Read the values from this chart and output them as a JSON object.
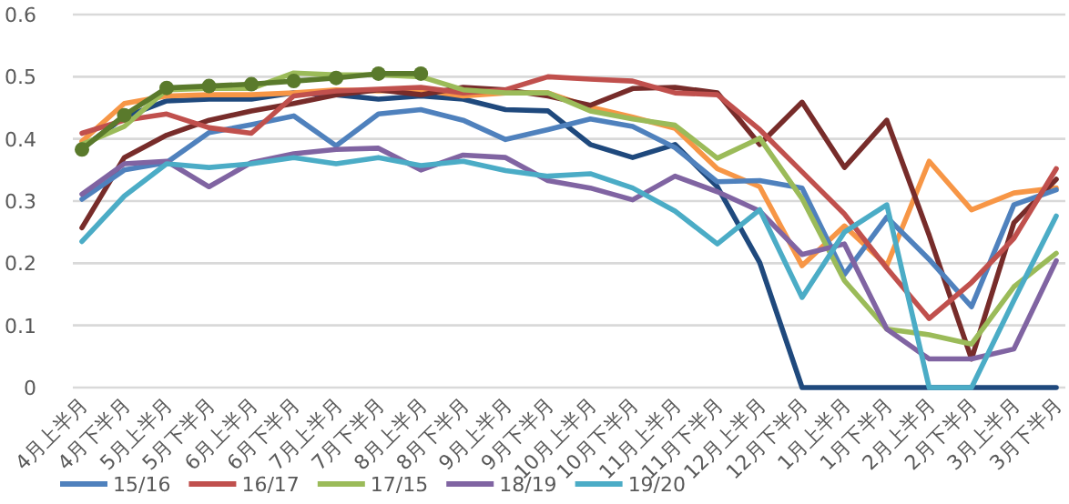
{
  "chart_data": {
    "type": "line",
    "categories": [
      "4月上半月",
      "4月下半月",
      "5月上半月",
      "5月下半月",
      "6月上半月",
      "6月下半月",
      "7月上半月",
      "7月下半月",
      "8月上半月",
      "8月下半月",
      "9月上半月",
      "9月下半月",
      "10月上半月",
      "10月下半月",
      "11月上半月",
      "11月下半月",
      "12月上半月",
      "12月下半月",
      "1月上半月",
      "1月下半月",
      "2月上半月",
      "2月下半月",
      "3月上半月",
      "3月下半月"
    ],
    "ylim": [
      0,
      0.6
    ],
    "yticks": [
      0,
      0.1,
      0.2,
      0.3,
      0.4,
      0.5,
      0.6
    ],
    "grid": "y",
    "legend": "bottom",
    "series": [
      {
        "color": "#1f497d",
        "values": [
          0.385,
          0.435,
          0.461,
          0.464,
          0.464,
          0.474,
          0.471,
          0.464,
          0.469,
          0.464,
          0.447,
          0.445,
          0.391,
          0.37,
          0.391,
          0.323,
          0.201,
          0,
          0,
          0,
          0,
          0,
          0,
          0
        ]
      },
      {
        "color": "#f79646",
        "values": [
          0.396,
          0.457,
          0.469,
          0.471,
          0.471,
          0.474,
          0.479,
          0.477,
          0.479,
          0.469,
          0.474,
          0.474,
          0.451,
          0.435,
          0.417,
          0.352,
          0.323,
          0.196,
          0.26,
          0.196,
          0.364,
          0.286,
          0.313,
          0.321
        ]
      },
      {
        "color": "#772c2a",
        "values": [
          0.257,
          0.37,
          0.406,
          0.43,
          0.445,
          0.457,
          0.471,
          0.479,
          0.471,
          0.483,
          0.479,
          0.469,
          0.454,
          0.481,
          0.483,
          0.474,
          0.391,
          0.459,
          0.354,
          0.43,
          0.245,
          0.046,
          0.265,
          0.335
        ]
      },
      {
        "name": "15/16",
        "color": "#4f81bd",
        "values": [
          0.303,
          0.35,
          0.362,
          0.41,
          0.423,
          0.437,
          0.389,
          0.44,
          0.447,
          0.43,
          0.399,
          0.415,
          0.432,
          0.42,
          0.386,
          0.331,
          0.333,
          0.321,
          0.182,
          0.274,
          0.206,
          0.13,
          0.294,
          0.318
        ]
      },
      {
        "name": "16/17",
        "color": "#c0504d",
        "values": [
          0.409,
          0.43,
          0.44,
          0.418,
          0.409,
          0.469,
          0.477,
          0.48,
          0.483,
          0.474,
          0.479,
          0.5,
          0.496,
          0.493,
          0.474,
          0.471,
          0.415,
          0.347,
          0.279,
          0.192,
          0.111,
          0.169,
          0.24,
          0.352
        ]
      },
      {
        "name": "17/15",
        "color": "#9bbb59",
        "values": [
          0.391,
          0.42,
          0.479,
          0.481,
          0.481,
          0.506,
          0.503,
          0.503,
          0.5,
          0.479,
          0.474,
          0.474,
          0.445,
          0.432,
          0.422,
          0.369,
          0.401,
          0.304,
          0.172,
          0.094,
          0.085,
          0.07,
          0.162,
          0.216
        ]
      },
      {
        "name": "18/19",
        "color": "#8064a2",
        "values": [
          0.311,
          0.36,
          0.364,
          0.323,
          0.362,
          0.376,
          0.383,
          0.385,
          0.35,
          0.374,
          0.37,
          0.333,
          0.321,
          0.302,
          0.34,
          0.315,
          0.284,
          0.214,
          0.231,
          0.094,
          0.046,
          0.046,
          0.062,
          0.204
        ]
      },
      {
        "name": "19/20",
        "color": "#4bacc6",
        "values": [
          0.235,
          0.308,
          0.36,
          0.354,
          0.36,
          0.37,
          0.36,
          0.37,
          0.357,
          0.364,
          0.349,
          0.34,
          0.344,
          0.321,
          0.284,
          0.231,
          0.286,
          0.145,
          0.25,
          0.294,
          0,
          0,
          0.14,
          0.276
        ]
      },
      {
        "color": "#5a7a2c",
        "marker": "circle",
        "values": [
          0.383,
          0.438,
          0.482,
          0.485,
          0.488,
          0.493,
          0.498,
          0.505,
          0.505,
          null,
          null,
          null,
          null,
          null,
          null,
          null,
          null,
          null,
          null,
          null,
          null,
          null,
          null,
          null
        ]
      }
    ]
  }
}
